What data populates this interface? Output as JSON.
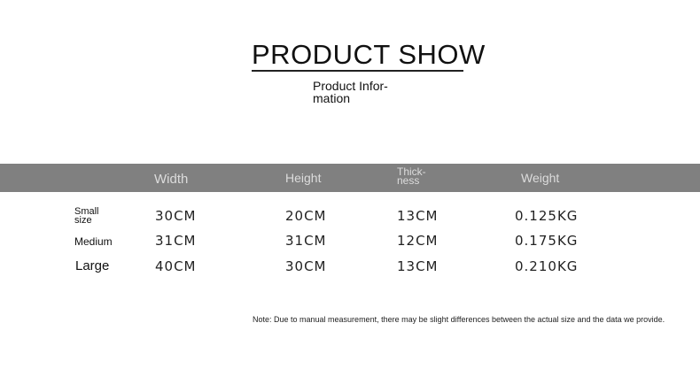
{
  "title": "PRODUCT SHOW",
  "subtitle_line1": "Product Infor-",
  "subtitle_line2": "mation",
  "table": {
    "headers": {
      "width": "Width",
      "height": "Height",
      "thickness_1": "Thick-",
      "thickness_2": "ness",
      "weight": "Weight"
    },
    "rows": [
      {
        "size_1": "Small",
        "size_2": "size",
        "width": "30CM",
        "height": "20CM",
        "thickness": "13CM",
        "weight": "0.125KG"
      },
      {
        "size_1": "Medium",
        "size_2": "",
        "width": "31CM",
        "height": "31CM",
        "thickness": "12CM",
        "weight": "0.175KG"
      },
      {
        "size_1": "Large",
        "size_2": "",
        "width": "40CM",
        "height": "30CM",
        "thickness": "13CM",
        "weight": "0.210KG"
      }
    ]
  },
  "note": "Note: Due to manual measurement, there may be slight differences between the actual size and the data we provide.",
  "colors": {
    "header_bar": "#808080",
    "header_text": "#dcdcdc"
  }
}
